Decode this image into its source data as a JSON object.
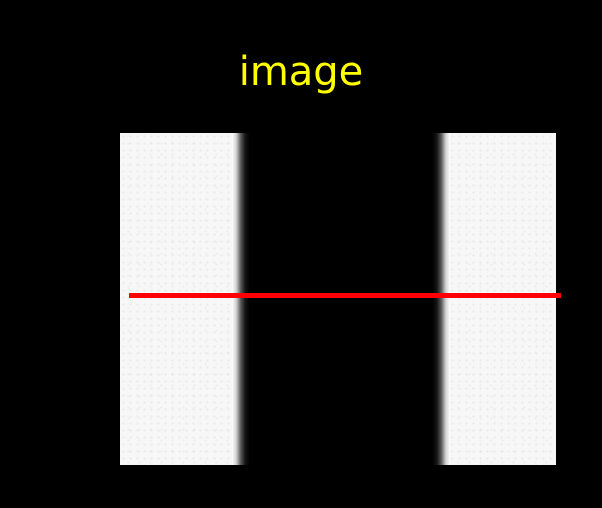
{
  "title": "image",
  "colors": {
    "background": "#000000",
    "title": "#ffff00",
    "profile_line": "#ff0000",
    "image_light": "#f7f7f7",
    "image_dark": "#000000"
  }
}
